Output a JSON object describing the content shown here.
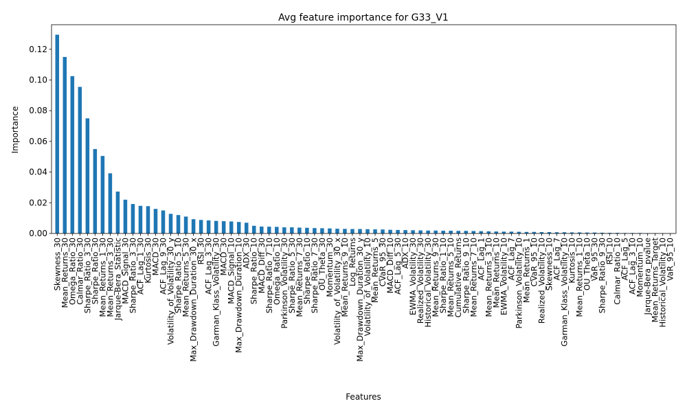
{
  "chart_data": {
    "type": "bar",
    "title": "Avg feature importance for G33_V1",
    "xlabel": "Features",
    "ylabel": "Importance",
    "ylim": [
      0,
      0.136
    ],
    "yticks": [
      "0.00",
      "0.02",
      "0.04",
      "0.06",
      "0.08",
      "0.10",
      "0.12"
    ],
    "bar_color": "#1f77b4",
    "grid": false,
    "legend": "none",
    "categories": [
      "Skewness_30",
      "Mean_Returns_30",
      "Omega_Ratio_30",
      "Calmar_Ratio_30",
      "Sharpe_Ratio_3_30",
      "Sharpe_Ratio_30",
      "Mean_Returns_1_30",
      "Mean_Returns_3_30",
      "Jarque-Bera_Statistic",
      "MACD_Signal_30",
      "Sharpe_Ratio_3_30",
      "ACF_Lag_1_30",
      "Kurtosis_30",
      "MACD_30",
      "ACF_Lag_9_30",
      "Volatility_of_Volatility_30_y",
      "Sharpe_Ratio_5_10",
      "Mean_Returns_5_30",
      "Max_Drawdown_Duration_30_x",
      "RSI_30",
      "ACF_Lag_3_30",
      "Garman_Klass_Volatility_30",
      "MACD_30",
      "MACD_Signal_10",
      "Max_Drawdown_Duration_10",
      "ADX_30",
      "Sharpe_Ratio_10",
      "MACD_Diff_30",
      "Sharpe_Ratio_7_10",
      "Omega_Ratio_10",
      "Parkinson_Volatility_30",
      "Sharpe_Ratio_5_30",
      "Mean_Returns_7_30",
      "Sharpe_Ratio_10",
      "Sharpe_Ratio_7_30",
      "OU_Theta_30",
      "Momentum_30",
      "Volatility_of_Volatility_30_x",
      "Mean_Returns_9_10",
      "Log_Returns",
      "Max_Drawdown_Duration_30_y",
      "Volatility_of_Volatility_10",
      "Mean_Returns_5",
      "CVaR_95_30",
      "MACD_Diff_10",
      "ACF_Lag_5_30",
      "ADX_10",
      "EWMA_Volatility_30",
      "Realized_Volatility_30",
      "Historical_Volatility_30",
      "Mean_Returns_9_30",
      "Sharpe_Ratio_1_10",
      "Mean_Returns_5_10",
      "Cumulative_Returns",
      "Sharpe_Ratio_9_10",
      "Mean_Returns_7_10",
      "ACF_Lag_1",
      "Mean_Returns_3_10",
      "Mean_Returns_10",
      "EWMA_Volatility_10",
      "ACF_Lag_7",
      "Parkinson_Volatility_10",
      "Mean_Returns_1",
      "CVaR_95_10",
      "Realized_Volatility_10",
      "Skewness_10",
      "ACF_Lag_7",
      "Garman_Klass_Volatility_10",
      "Kurtosis_10",
      "Mean_Returns_1_10",
      "OU_Theta_10",
      "VaR_95_30",
      "Sharpe_Ratio_9_30",
      "RSI_10",
      "Calmar_Ratio_10",
      "ACF_Lag_5",
      "ACF_Lag_3_10",
      "Momentum_10",
      "Jarque-Bera_pvalue",
      "Mean_Returns_Target",
      "Historical_Volatility_10",
      "VaR_95_10"
    ],
    "values": [
      0.1295,
      0.115,
      0.1025,
      0.0955,
      0.075,
      0.055,
      0.0505,
      0.0392,
      0.0273,
      0.022,
      0.0192,
      0.018,
      0.0178,
      0.016,
      0.015,
      0.0128,
      0.012,
      0.011,
      0.0093,
      0.0088,
      0.0085,
      0.0082,
      0.008,
      0.0078,
      0.0075,
      0.007,
      0.005,
      0.0045,
      0.0044,
      0.0043,
      0.004,
      0.004,
      0.0038,
      0.0037,
      0.0035,
      0.0034,
      0.0033,
      0.0031,
      0.003,
      0.0029,
      0.0029,
      0.0028,
      0.0027,
      0.0026,
      0.0024,
      0.0023,
      0.0022,
      0.0021,
      0.002,
      0.0019,
      0.0019,
      0.0018,
      0.0018,
      0.0017,
      0.0017,
      0.0016,
      0.0015,
      0.0014,
      0.0013,
      0.0012,
      0.0012,
      0.0011,
      0.001,
      0.001,
      0.0009,
      0.0009,
      0.0008,
      0.0008,
      0.0007,
      0.0007,
      0.0006,
      0.0006,
      0.0005,
      0.0004,
      0.0004,
      0.0003,
      0.0003,
      0.0003,
      0.0002,
      0.0002,
      0.0001,
      0.0001
    ]
  }
}
